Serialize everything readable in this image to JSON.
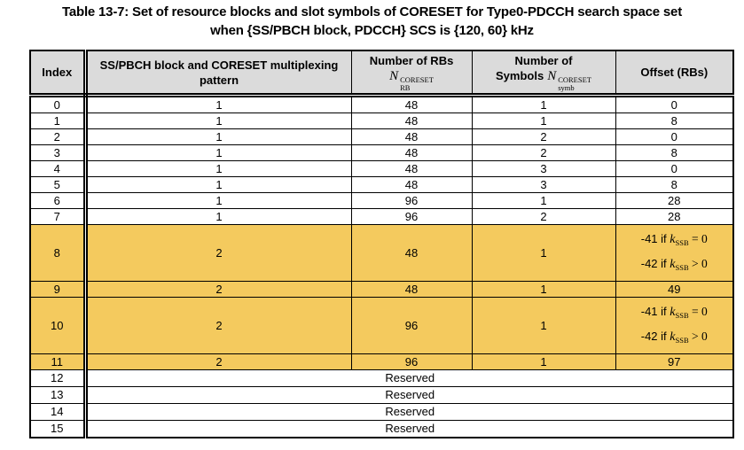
{
  "title": {
    "line1": "Table 13-7: Set of resource blocks and slot symbols of CORESET for Type0-PDCCH search space set",
    "line2": "when {SS/PBCH block, PDCCH} SCS is {120, 60} kHz"
  },
  "colors": {
    "header_bg": "#dbdbdb",
    "highlight": "#f4ca5e",
    "border": "#000000",
    "text": "#000000"
  },
  "table": {
    "columns": [
      {
        "label": "Index"
      },
      {
        "label": "SS/PBCH block and CORESET multiplexing pattern"
      },
      {
        "line1": "Number of RBs",
        "math": {
          "base": "N",
          "sup": "CORESET",
          "sub": "RB"
        }
      },
      {
        "line1": "Number of",
        "line2_prefix": "Symbols",
        "math": {
          "base": "N",
          "sup": "CORESET",
          "sub": "symb"
        }
      },
      {
        "label": "Offset (RBs)"
      }
    ],
    "rows": [
      {
        "index": "0",
        "pattern": "1",
        "rbs": "48",
        "symbols": "1",
        "offset": "0",
        "highlight": false
      },
      {
        "index": "1",
        "pattern": "1",
        "rbs": "48",
        "symbols": "1",
        "offset": "8",
        "highlight": false
      },
      {
        "index": "2",
        "pattern": "1",
        "rbs": "48",
        "symbols": "2",
        "offset": "0",
        "highlight": false
      },
      {
        "index": "3",
        "pattern": "1",
        "rbs": "48",
        "symbols": "2",
        "offset": "8",
        "highlight": false
      },
      {
        "index": "4",
        "pattern": "1",
        "rbs": "48",
        "symbols": "3",
        "offset": "0",
        "highlight": false
      },
      {
        "index": "5",
        "pattern": "1",
        "rbs": "48",
        "symbols": "3",
        "offset": "8",
        "highlight": false
      },
      {
        "index": "6",
        "pattern": "1",
        "rbs": "96",
        "symbols": "1",
        "offset": "28",
        "highlight": false
      },
      {
        "index": "7",
        "pattern": "1",
        "rbs": "96",
        "symbols": "2",
        "offset": "28",
        "highlight": false
      },
      {
        "index": "8",
        "pattern": "2",
        "rbs": "48",
        "symbols": "1",
        "highlight": true,
        "tall": true,
        "offset_conditions": [
          {
            "prefix": "-41 if ",
            "k_base": "k",
            "k_sub": "SSB",
            "suffix": " = 0"
          },
          {
            "prefix": "-42 if ",
            "k_base": "k",
            "k_sub": "SSB",
            "suffix": " > 0"
          }
        ]
      },
      {
        "index": "9",
        "pattern": "2",
        "rbs": "48",
        "symbols": "1",
        "offset": "49",
        "highlight": true
      },
      {
        "index": "10",
        "pattern": "2",
        "rbs": "96",
        "symbols": "1",
        "highlight": true,
        "tall": true,
        "offset_conditions": [
          {
            "prefix": "-41 if ",
            "k_base": "k",
            "k_sub": "SSB",
            "suffix": " = 0"
          },
          {
            "prefix": "-42 if ",
            "k_base": "k",
            "k_sub": "SSB",
            "suffix": " > 0"
          }
        ]
      },
      {
        "index": "11",
        "pattern": "2",
        "rbs": "96",
        "symbols": "1",
        "offset": "97",
        "highlight": true
      },
      {
        "index": "12",
        "reserved": "Reserved"
      },
      {
        "index": "13",
        "reserved": "Reserved"
      },
      {
        "index": "14",
        "reserved": "Reserved"
      },
      {
        "index": "15",
        "reserved": "Reserved"
      }
    ]
  }
}
